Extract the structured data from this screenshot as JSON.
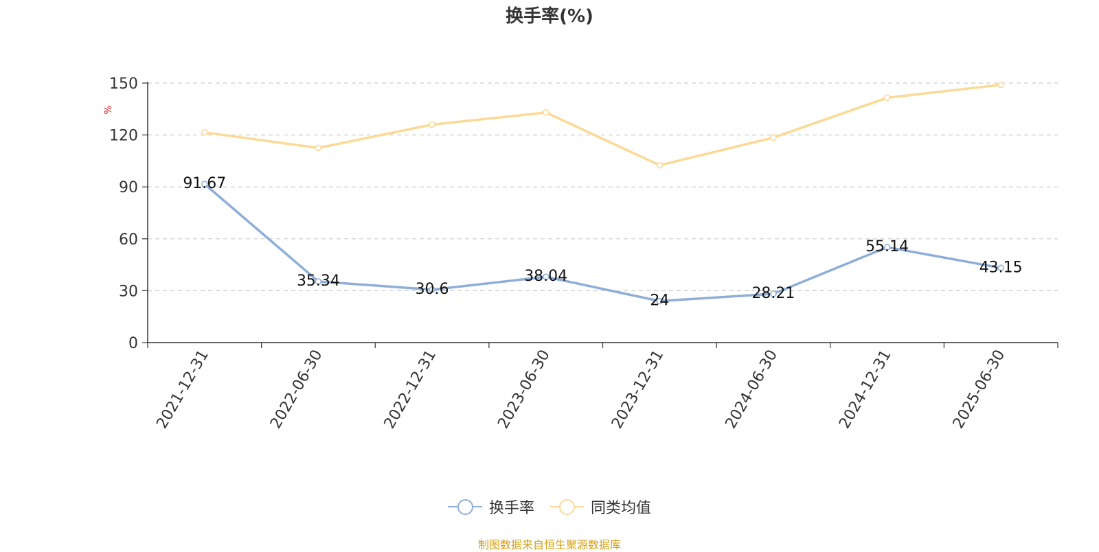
{
  "chart_data": {
    "type": "line",
    "title": "换手率(%)",
    "ylabel": "%",
    "categories": [
      "2021-12-31",
      "2022-06-30",
      "2022-12-31",
      "2023-06-30",
      "2023-12-31",
      "2024-06-30",
      "2024-12-31",
      "2025-06-30"
    ],
    "ylim": [
      0,
      150
    ],
    "yticks": [
      0,
      30,
      60,
      90,
      120,
      150
    ],
    "grid": true,
    "legend_position": "bottom",
    "series": [
      {
        "name": "换手率",
        "color": "#8eaed9",
        "labels": true,
        "values": [
          91.67,
          35.34,
          30.6,
          38.04,
          24,
          28.21,
          55.14,
          43.15
        ]
      },
      {
        "name": "同类均值",
        "color": "#fcd995",
        "labels": false,
        "values": [
          121.5,
          112.5,
          126,
          133,
          102.5,
          118.5,
          141.5,
          149
        ]
      }
    ]
  },
  "footer": {
    "source": "制图数据来自恒生聚源数据库"
  }
}
